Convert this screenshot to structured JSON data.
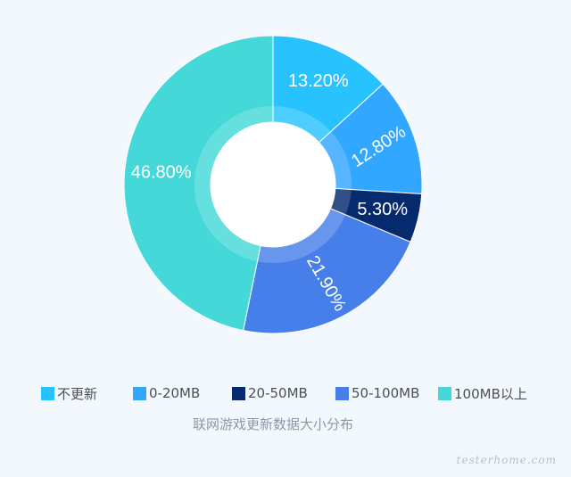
{
  "chart_data": {
    "type": "pie",
    "variant": "donut",
    "title": "联网游戏更新数据大小分布",
    "slices": [
      {
        "label": "不更新",
        "value": 13.2,
        "value_label": "13.20%",
        "color": "#28c3ff"
      },
      {
        "label": "0-20MB",
        "value": 12.8,
        "value_label": "12.80%",
        "color": "#32a7ff"
      },
      {
        "label": "20-50MB",
        "value": 5.3,
        "value_label": "5.30%",
        "color": "#052a6e"
      },
      {
        "label": "50-100MB",
        "value": 21.9,
        "value_label": "21.90%",
        "color": "#477fea"
      },
      {
        "label": "100MB以上",
        "value": 46.8,
        "value_label": "46.80%",
        "color": "#45d8d8"
      }
    ],
    "legend_position": "bottom"
  },
  "watermark": "testerhome.com"
}
